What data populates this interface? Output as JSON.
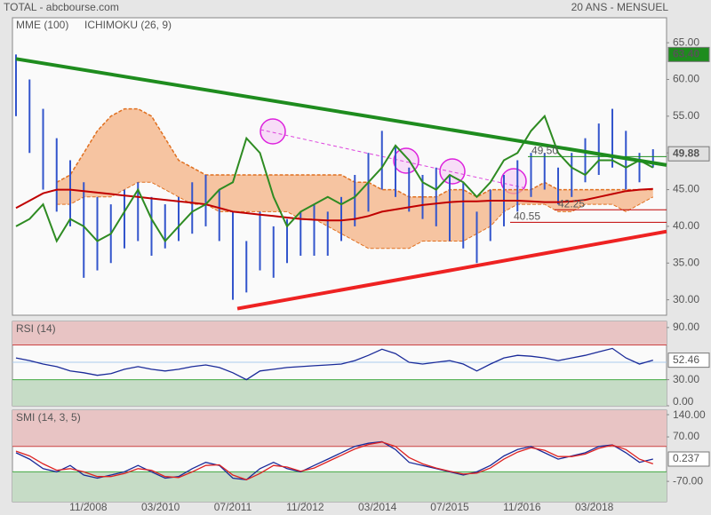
{
  "header": {
    "left": "TOTAL - abcbourse.com",
    "right": "20 ANS - MENSUEL"
  },
  "chart_data": [
    {
      "type": "stock",
      "x": [
        "07/2007",
        "10/2007",
        "01/2008",
        "04/2008",
        "07/2008",
        "10/2008",
        "01/2009",
        "04/2009",
        "07/2009",
        "10/2009",
        "01/2010",
        "04/2010",
        "07/2010",
        "10/2010",
        "01/2011",
        "04/2011",
        "07/2011",
        "10/2011",
        "01/2012",
        "04/2012",
        "07/2012",
        "10/2012",
        "01/2013",
        "04/2013",
        "07/2013",
        "10/2013",
        "01/2014",
        "04/2014",
        "07/2014",
        "10/2014",
        "01/2015",
        "04/2015",
        "07/2015",
        "10/2015",
        "01/2016",
        "04/2016",
        "07/2016",
        "10/2016",
        "01/2017",
        "04/2017",
        "07/2017",
        "10/2017",
        "01/2018",
        "04/2018",
        "07/2018",
        "10/2018",
        "01/2019",
        "04/2019"
      ],
      "xlim": [
        "07/2007",
        "07/2019"
      ],
      "ylim": [
        27.9,
        68.4
      ],
      "yticks": [
        {
          "value": 30,
          "label": "30.00"
        },
        {
          "value": 35,
          "label": "35.00"
        },
        {
          "value": 40,
          "label": "40.00"
        },
        {
          "value": 45,
          "label": "45.00"
        },
        {
          "value": 50,
          "label": "50.00"
        },
        {
          "value": 55,
          "label": "55.00"
        },
        {
          "value": 60,
          "label": "60.00"
        },
        {
          "value": 65,
          "label": "65.00"
        }
      ],
      "price": {
        "color": "#3355cc",
        "high": [
          63.4,
          60,
          56,
          52,
          49,
          46,
          44,
          43,
          45,
          46,
          44,
          43,
          44,
          46,
          47,
          45,
          42,
          38,
          42,
          40,
          41,
          42,
          43,
          42,
          44,
          47,
          50,
          53,
          51,
          48,
          47,
          48,
          47,
          46,
          42,
          45,
          47,
          49,
          50,
          50,
          48,
          50,
          52,
          54,
          56,
          53,
          50,
          50.5
        ],
        "low": [
          55,
          50,
          45,
          42,
          40,
          33,
          34,
          35,
          37,
          38,
          36,
          37,
          38,
          39,
          40,
          38,
          30,
          31,
          34,
          33,
          35,
          36,
          36,
          36,
          38,
          40,
          42,
          45,
          44,
          42,
          41,
          40,
          38,
          37,
          35,
          38,
          40,
          42,
          44,
          45,
          43,
          44,
          46,
          47,
          48,
          45,
          46,
          48
        ]
      },
      "series": [
        {
          "name": "MME (100)",
          "color": "#c00000",
          "values": [
            42.5,
            43.5,
            44.5,
            45,
            45,
            44.8,
            44.6,
            44.4,
            44.2,
            44,
            43.8,
            43.6,
            43.4,
            43.2,
            43,
            42.5,
            42,
            41.8,
            41.6,
            41.4,
            41.2,
            41,
            40.9,
            40.8,
            40.8,
            41,
            41.4,
            42,
            42.3,
            42.6,
            42.9,
            43.1,
            43.3,
            43.4,
            43.4,
            43.5,
            43.5,
            43.5,
            43.4,
            43.3,
            43.3,
            43.4,
            43.6,
            44,
            44.4,
            44.8,
            45,
            45.1
          ]
        }
      ],
      "ichimoku": {
        "name": "ICHIMOKU (26, 9)",
        "color": "#0000cc",
        "line_color": "#2e8b22",
        "cloud_color": "#f4b183",
        "edge_color": "#e07020",
        "line": [
          40,
          41,
          43,
          38,
          41,
          40,
          38,
          39,
          42,
          45,
          41,
          38,
          40,
          42,
          43,
          45,
          46,
          52,
          50,
          44,
          40,
          42,
          43,
          44,
          43,
          44,
          46,
          48,
          51,
          49,
          46,
          45,
          47,
          46,
          44,
          46,
          49,
          50,
          53,
          55,
          50,
          48,
          47,
          49,
          49,
          48,
          49,
          48
        ],
        "cloud_upper": [
          null,
          null,
          null,
          46,
          47,
          50,
          53,
          55,
          56,
          56,
          55,
          52,
          49,
          48,
          47,
          47,
          47,
          47,
          47,
          47,
          47,
          47,
          47,
          47,
          47,
          46,
          46,
          45,
          45,
          44,
          44,
          44,
          45,
          45,
          44,
          45,
          45,
          45,
          45,
          46,
          45,
          45,
          45,
          45,
          45,
          45,
          45,
          45
        ],
        "cloud_lower": [
          null,
          null,
          null,
          43,
          43,
          44,
          44,
          44,
          45,
          46,
          46,
          45,
          44,
          43,
          43,
          42,
          42,
          42,
          42,
          42,
          42,
          41,
          41,
          40,
          39,
          38,
          37,
          37,
          37,
          37,
          38,
          38,
          38,
          38,
          39,
          40,
          42,
          43,
          43,
          43,
          42,
          42,
          43,
          43,
          43,
          42,
          43,
          44
        ]
      },
      "trendlines": [
        {
          "color": "#1e8c1e",
          "x": [
            "07/2007",
            "07/2019"
          ],
          "values": [
            62.8,
            48.35
          ]
        },
        {
          "color": "#ee2222",
          "x": [
            "08/2011",
            "07/2019"
          ],
          "values": [
            28.8,
            39.3
          ]
        }
      ],
      "levels": [
        {
          "value": 49.5,
          "label": "49.50",
          "color": "#1e8c1e"
        },
        {
          "value": 42.25,
          "label": "42.25",
          "color": "#c00000"
        },
        {
          "value": 40.55,
          "label": "40.55",
          "color": "#c00000"
        }
      ],
      "markers": [
        {
          "value": 63.4,
          "label": "63.40",
          "color": "#1e8c1e"
        },
        {
          "value": 49.88,
          "color": "#e0e0e0"
        }
      ]
    },
    {
      "type": "oscillator",
      "title": "RSI (14)",
      "ylim": [
        0,
        97
      ],
      "yticks": [
        {
          "value": 90,
          "label": "90.00"
        },
        {
          "value": 30,
          "label": "30.00"
        },
        {
          "value": 0,
          "label": "0.00"
        }
      ],
      "overbought": 70,
      "oversold": 30,
      "midline": 50,
      "series": [
        {
          "color": "#1a2a99",
          "values": [
            55,
            52,
            48,
            45,
            40,
            38,
            35,
            37,
            42,
            45,
            42,
            40,
            42,
            45,
            47,
            44,
            38,
            30,
            40,
            42,
            44,
            45,
            46,
            47,
            48,
            52,
            58,
            65,
            60,
            50,
            48,
            50,
            52,
            48,
            40,
            48,
            55,
            58,
            57,
            55,
            52,
            55,
            58,
            62,
            66,
            55,
            48,
            52.46
          ]
        }
      ],
      "last": 52.46
    },
    {
      "type": "oscillator",
      "title": "SMI (14, 3, 5)",
      "ylim": [
        -134,
        154
      ],
      "yticks": [
        {
          "value": 140,
          "label": "140.00"
        },
        {
          "value": 70,
          "label": "70.00"
        },
        {
          "value": -70,
          "label": "-70.00"
        }
      ],
      "overbought": 40,
      "oversold": -40,
      "series": [
        {
          "color": "#1a2a99",
          "values": [
            20,
            0,
            -30,
            -40,
            -20,
            -50,
            -60,
            -50,
            -40,
            -20,
            -40,
            -60,
            -55,
            -30,
            -10,
            -20,
            -60,
            -65,
            -30,
            -10,
            -30,
            -40,
            -20,
            0,
            20,
            40,
            50,
            55,
            30,
            -10,
            -20,
            -30,
            -40,
            -50,
            -40,
            -20,
            10,
            30,
            40,
            20,
            0,
            10,
            20,
            40,
            45,
            20,
            -10,
            0.237
          ]
        },
        {
          "color": "#dd2222",
          "values": [
            25,
            10,
            -15,
            -35,
            -30,
            -40,
            -55,
            -55,
            -45,
            -30,
            -35,
            -55,
            -58,
            -40,
            -20,
            -18,
            -50,
            -65,
            -45,
            -20,
            -25,
            -38,
            -28,
            -8,
            12,
            32,
            46,
            54,
            40,
            5,
            -15,
            -28,
            -38,
            -47,
            -44,
            -28,
            0,
            22,
            36,
            28,
            8,
            8,
            16,
            34,
            44,
            30,
            0,
            -15
          ]
        }
      ],
      "last": 0.237,
      "xticks": [
        "11/2008",
        "03/2010",
        "07/2011",
        "11/2012",
        "03/2014",
        "07/2015",
        "11/2016",
        "03/2018"
      ]
    }
  ]
}
